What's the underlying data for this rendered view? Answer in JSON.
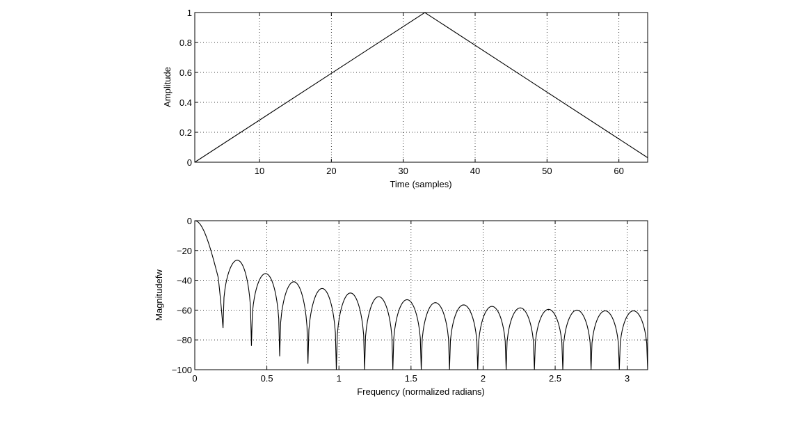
{
  "chart_data": [
    {
      "type": "line",
      "title": "",
      "xlabel": "Time (samples)",
      "ylabel": "Amplitude",
      "xlim": [
        1,
        64
      ],
      "ylim": [
        0,
        1
      ],
      "xticks": [
        10,
        20,
        30,
        40,
        50,
        60
      ],
      "yticks": [
        0,
        0.2,
        0.4,
        0.6,
        0.8,
        1
      ],
      "xtick_labels": [
        "10",
        "20",
        "30",
        "40",
        "50",
        "60"
      ],
      "ytick_labels": [
        "0",
        "0.2",
        "0.4",
        "0.6",
        "0.8",
        "1"
      ],
      "grid": true,
      "line_color": "#000000",
      "series": [
        {
          "x": [
            1,
            33,
            64
          ],
          "y": [
            0,
            1,
            0.0303
          ]
        }
      ]
    },
    {
      "type": "line",
      "title": "",
      "xlabel": "Frequency (normalized radians)",
      "ylabel": "Magnitudefw",
      "xlim": [
        0,
        3.1416
      ],
      "ylim": [
        -100,
        0
      ],
      "xticks": [
        0,
        0.5,
        1,
        1.5,
        2,
        2.5,
        3
      ],
      "yticks": [
        -100,
        -80,
        -60,
        -40,
        -20,
        0
      ],
      "xtick_labels": [
        "0",
        "0.5",
        "1",
        "1.5",
        "2",
        "2.5",
        "3"
      ],
      "ytick_labels": [
        "−100",
        "−80",
        "−60",
        "−40",
        "−20",
        "0"
      ],
      "grid": true,
      "line_color": "#000000",
      "lobe_peaks": [
        {
          "x": 0.29,
          "y": -26.5
        },
        {
          "x": 0.49,
          "y": -35.5
        },
        {
          "x": 0.69,
          "y": -41
        },
        {
          "x": 0.88,
          "y": -45.5
        },
        {
          "x": 1.08,
          "y": -48.5
        },
        {
          "x": 1.28,
          "y": -51
        },
        {
          "x": 1.47,
          "y": -53
        },
        {
          "x": 1.67,
          "y": -55
        },
        {
          "x": 1.87,
          "y": -56.5
        },
        {
          "x": 2.06,
          "y": -57.5
        },
        {
          "x": 2.26,
          "y": -58.5
        },
        {
          "x": 2.45,
          "y": -59.5
        },
        {
          "x": 2.65,
          "y": -60
        },
        {
          "x": 2.85,
          "y": -60.5
        },
        {
          "x": 3.04,
          "y": -60.5
        }
      ],
      "nulls": [
        {
          "x": 0.196,
          "y": -72
        },
        {
          "x": 0.393,
          "y": -84
        },
        {
          "x": 0.589,
          "y": -91
        },
        {
          "x": 0.785,
          "y": -96
        },
        {
          "x": 0.982,
          "y": -100
        },
        {
          "x": 1.178,
          "y": -100
        },
        {
          "x": 1.374,
          "y": -100
        },
        {
          "x": 1.571,
          "y": -100
        },
        {
          "x": 1.767,
          "y": -100
        },
        {
          "x": 1.963,
          "y": -100
        },
        {
          "x": 2.16,
          "y": -100
        },
        {
          "x": 2.356,
          "y": -100
        },
        {
          "x": 2.553,
          "y": -100
        },
        {
          "x": 2.749,
          "y": -100
        },
        {
          "x": 2.945,
          "y": -100
        },
        {
          "x": 3.1416,
          "y": -100
        }
      ]
    }
  ]
}
